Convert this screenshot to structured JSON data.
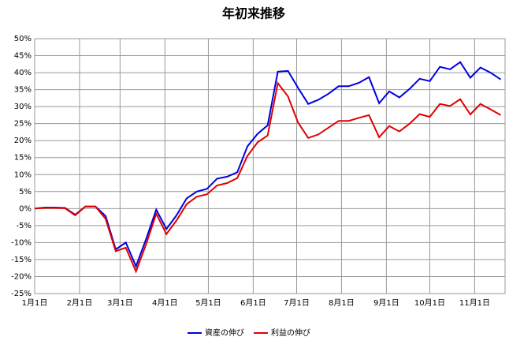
{
  "chart_data": {
    "type": "line",
    "title": "年初来推移",
    "x": [
      0,
      7,
      14,
      21,
      28,
      35,
      42,
      49,
      56,
      63,
      70,
      77,
      84,
      91,
      98,
      105,
      112,
      119,
      126,
      133,
      140,
      147,
      154,
      161,
      168,
      175,
      182,
      189,
      196,
      203,
      210,
      217,
      224,
      231,
      238,
      245,
      252,
      259,
      266,
      273,
      280,
      287,
      294,
      301,
      308,
      315,
      322
    ],
    "series": [
      {
        "name": "資産の伸び",
        "color": "#0000e0",
        "values": [
          0,
          0.3,
          0.3,
          0.2,
          -1.8,
          0.6,
          0.6,
          -2.2,
          -12,
          -10,
          -17,
          -9,
          -0.3,
          -6,
          -2,
          3,
          5,
          5.8,
          8.8,
          9.4,
          10.7,
          18.3,
          22,
          24.5,
          40.3,
          40.5,
          35.5,
          30.8,
          32,
          33.8,
          36,
          36,
          37,
          38.7,
          31,
          34.5,
          32.7,
          35.2,
          38.2,
          37.5,
          41.7,
          41,
          43.1,
          38.5,
          41.5,
          40,
          38
        ]
      },
      {
        "name": "利益の伸び",
        "color": "#e00000",
        "values": [
          0,
          0.2,
          0.2,
          0.1,
          -2,
          0.6,
          0.6,
          -3,
          -12.5,
          -11.5,
          -18.5,
          -10.5,
          -1.5,
          -7.5,
          -3.5,
          1.3,
          3.5,
          4.2,
          6.8,
          7.5,
          9,
          15.5,
          19.5,
          21.5,
          36.9,
          33,
          25.3,
          20.8,
          21.8,
          23.8,
          25.8,
          25.8,
          26.7,
          27.5,
          21,
          24.3,
          22.7,
          25,
          27.8,
          27,
          30.8,
          30.2,
          32.2,
          27.7,
          30.8,
          29.2,
          27.5
        ]
      }
    ],
    "xlim": [
      0,
      325
    ],
    "xticks": [
      {
        "value": 0,
        "label": "1月1日"
      },
      {
        "value": 31,
        "label": "2月1日"
      },
      {
        "value": 59,
        "label": "3月1日"
      },
      {
        "value": 90,
        "label": "4月1日"
      },
      {
        "value": 120,
        "label": "5月1日"
      },
      {
        "value": 151,
        "label": "6月1日"
      },
      {
        "value": 181,
        "label": "7月1日"
      },
      {
        "value": 212,
        "label": "8月1日"
      },
      {
        "value": 243,
        "label": "9月1日"
      },
      {
        "value": 273,
        "label": "10月1日"
      },
      {
        "value": 304,
        "label": "11月1日"
      }
    ],
    "ylim": [
      -25,
      50
    ],
    "yticks": [
      {
        "value": -25,
        "label": "-25%"
      },
      {
        "value": -20,
        "label": "-20%"
      },
      {
        "value": -15,
        "label": "-15%"
      },
      {
        "value": -10,
        "label": "-10%"
      },
      {
        "value": -5,
        "label": "-5%"
      },
      {
        "value": 0,
        "label": "0%"
      },
      {
        "value": 5,
        "label": "5%"
      },
      {
        "value": 10,
        "label": "10%"
      },
      {
        "value": 15,
        "label": "15%"
      },
      {
        "value": 20,
        "label": "20%"
      },
      {
        "value": 25,
        "label": "25%"
      },
      {
        "value": 30,
        "label": "30%"
      },
      {
        "value": 35,
        "label": "35%"
      },
      {
        "value": 40,
        "label": "40%"
      },
      {
        "value": 45,
        "label": "45%"
      },
      {
        "value": 50,
        "label": "50%"
      }
    ],
    "grid": true,
    "legend": "bottom"
  }
}
